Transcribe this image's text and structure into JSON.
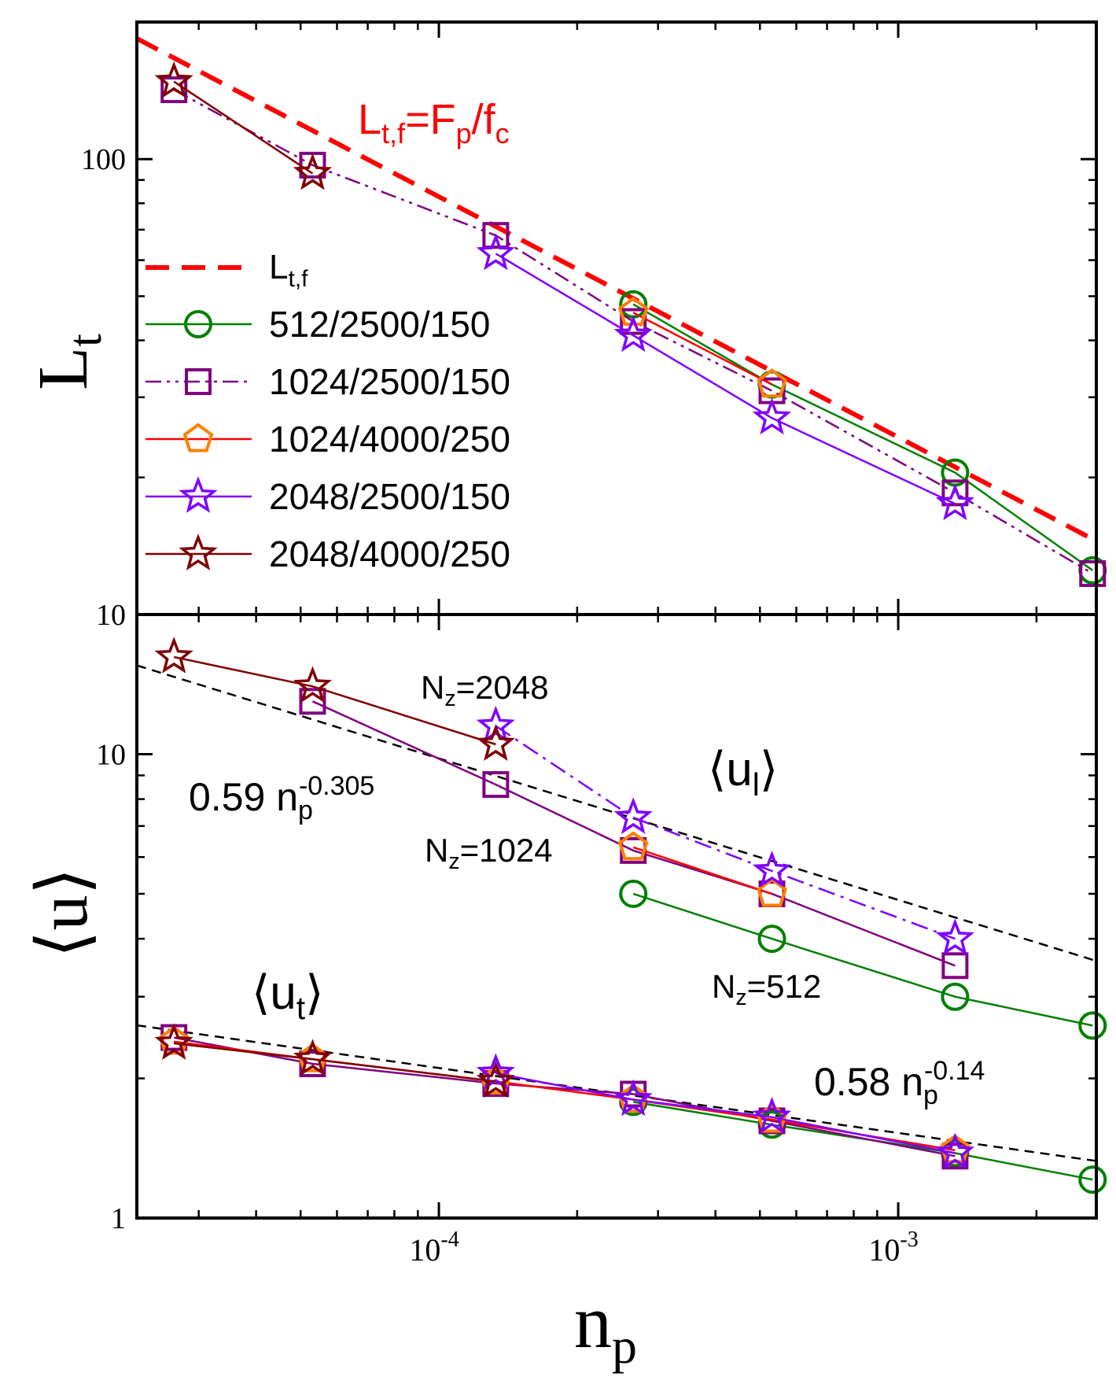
{
  "chart_data": [
    {
      "panel": "top",
      "type": "line",
      "xscale": "log",
      "yscale": "log",
      "xlim": [
        2.2e-05,
        0.0027
      ],
      "ylim": [
        10,
        200
      ],
      "ylabel": "L",
      "ylabel_sub": "t",
      "yticks": [
        {
          "value": 10,
          "label": "10"
        },
        {
          "value": 100,
          "label": "100"
        }
      ],
      "formula": {
        "L": "L",
        "L_sub": "t,f",
        "eq": "=F",
        "F_sub": "p",
        "slash": "/f",
        "f_sub": "c",
        "color": "#ff0000"
      },
      "reference_line": {
        "name": "L",
        "name_sub": "t,f",
        "color": "#ff0000",
        "dash": "dashed",
        "x": [
          2.2e-05,
          0.0027
        ],
        "y": [
          184,
          14.5
        ]
      },
      "legend_position": "left",
      "series": [
        {
          "name": "512/2500/150",
          "marker": "circle",
          "color": "#008000",
          "line_color": "#008000",
          "dash": "solid",
          "x": [
            0.000265,
            0.000531,
            0.00133,
            0.00265
          ],
          "y": [
            48,
            32,
            20.5,
            12.5
          ]
        },
        {
          "name": "1024/2500/150",
          "marker": "square",
          "color": "#800080",
          "line_color": "#800080",
          "dash": "dashdotdot",
          "x": [
            2.65e-05,
            5.31e-05,
            0.000133,
            0.000265,
            0.000531,
            0.00133,
            0.00265
          ],
          "y": [
            142,
            97,
            68,
            44,
            31,
            18.5,
            12.3
          ]
        },
        {
          "name": "1024/4000/250",
          "marker": "pentagon",
          "color": "#ff8000",
          "line_color": "#ff0000",
          "dash": "solid",
          "x": [
            0.000265,
            0.000531
          ],
          "y": [
            46,
            32
          ]
        },
        {
          "name": "2048/2500/150",
          "marker": "star",
          "color": "#8000ff",
          "line_color": "#8000ff",
          "dash": "solid",
          "x": [
            0.000133,
            0.000265,
            0.000531,
            0.00133
          ],
          "y": [
            62,
            41,
            27,
            17.5
          ]
        },
        {
          "name": "2048/4000/250",
          "marker": "star",
          "color": "#800000",
          "line_color": "#800000",
          "dash": "solid",
          "x": [
            2.65e-05,
            5.31e-05
          ],
          "y": [
            148,
            93
          ]
        }
      ]
    },
    {
      "panel": "bottom",
      "type": "line",
      "xscale": "log",
      "yscale": "log",
      "xlim": [
        2.2e-05,
        0.0027
      ],
      "ylim": [
        1,
        20
      ],
      "xlabel": "n",
      "xlabel_sub": "p",
      "ylabel": "⟨u⟩",
      "xticks": [
        {
          "value": 0.0001,
          "base": "10",
          "exp": "-4"
        },
        {
          "value": 0.001,
          "base": "10",
          "exp": "-3"
        }
      ],
      "yticks": [
        {
          "value": 1,
          "label": "1"
        },
        {
          "value": 10,
          "label": "10"
        }
      ],
      "labels": {
        "nz2048": "N",
        "nz2048_sub": "z",
        "nz2048_rest": "=2048",
        "nz1024": "N",
        "nz1024_sub": "z",
        "nz1024_rest": "=1024",
        "nz512": "N",
        "nz512_sub": "z",
        "nz512_rest": "=512",
        "ul_open": "⟨u",
        "ul_sub": "l",
        "ul_close": "⟩",
        "ut_open": "⟨u",
        "ut_sub": "t",
        "ut_close": "⟩",
        "fit1_coef": "0.59 n",
        "fit1_sub": "p",
        "fit1_exp": "-0.305",
        "fit2_coef": "0.58 n",
        "fit2_sub": "p",
        "fit2_exp": "-0.14"
      },
      "fits": [
        {
          "coef": 0.59,
          "exponent": -0.305,
          "color": "#000000",
          "dash": "dashed"
        },
        {
          "coef": 0.58,
          "exponent": -0.14,
          "color": "#000000",
          "dash": "dashed"
        }
      ],
      "series_ul": [
        {
          "name": "512/2500/150",
          "marker": "circle",
          "color": "#008000",
          "line_color": "#008000",
          "dash": "solid",
          "x": [
            0.000265,
            0.000531,
            0.00133,
            0.00265
          ],
          "y": [
            5.0,
            4.0,
            3.0,
            2.6
          ]
        },
        {
          "name": "1024/2500/150",
          "marker": "square",
          "color": "#800080",
          "line_color": "#800080",
          "dash": "solid",
          "x": [
            5.31e-05,
            0.000133,
            0.000265,
            0.000531,
            0.00133
          ],
          "y": [
            13.0,
            8.6,
            6.2,
            5.0,
            3.5
          ]
        },
        {
          "name": "1024/4000/250",
          "marker": "pentagon",
          "color": "#ff8000",
          "line_color": "#ff0000",
          "dash": "solid",
          "x": [
            0.000265,
            0.000531
          ],
          "y": [
            6.3,
            5.0
          ]
        },
        {
          "name": "2048/2500/150",
          "marker": "star",
          "color": "#8000ff",
          "line_color": "#8000ff",
          "dash": "dashdot",
          "x": [
            0.000133,
            0.000265,
            0.000531,
            0.00133
          ],
          "y": [
            11.5,
            7.3,
            5.6,
            4.0
          ]
        },
        {
          "name": "2048/4000/250",
          "marker": "star",
          "color": "#800000",
          "line_color": "#800000",
          "dash": "solid",
          "x": [
            2.65e-05,
            5.31e-05,
            0.000133
          ],
          "y": [
            16.2,
            14.0,
            10.5
          ]
        }
      ],
      "series_ut": [
        {
          "name": "512/2500/150",
          "marker": "circle",
          "color": "#008000",
          "line_color": "#008000",
          "dash": "solid",
          "x": [
            0.000265,
            0.000531,
            0.00133,
            0.00265
          ],
          "y": [
            1.78,
            1.59,
            1.38,
            1.21
          ]
        },
        {
          "name": "1024/2500/150",
          "marker": "square",
          "color": "#800080",
          "line_color": "#800080",
          "dash": "solid",
          "x": [
            2.65e-05,
            5.31e-05,
            0.000133,
            0.000265,
            0.000531,
            0.00133
          ],
          "y": [
            2.45,
            2.15,
            1.95,
            1.85,
            1.62,
            1.36
          ]
        },
        {
          "name": "1024/4000/250",
          "marker": "pentagon",
          "color": "#ff8000",
          "line_color": "#ff0000",
          "dash": "solid",
          "x": [
            2.65e-05,
            5.31e-05,
            0.000133,
            0.000265,
            0.000531,
            0.00133
          ],
          "y": [
            2.4,
            2.2,
            1.97,
            1.8,
            1.63,
            1.4
          ]
        },
        {
          "name": "2048/2500/150",
          "marker": "star",
          "color": "#8000ff",
          "line_color": "#8000ff",
          "dash": "solid",
          "x": [
            0.000133,
            0.000265,
            0.000531,
            0.00133
          ],
          "y": [
            2.05,
            1.8,
            1.65,
            1.38
          ]
        },
        {
          "name": "2048/4000/250",
          "marker": "star",
          "color": "#800000",
          "line_color": "#800000",
          "dash": "solid",
          "x": [
            2.65e-05,
            5.31e-05,
            0.000133
          ],
          "y": [
            2.38,
            2.2,
            1.97
          ]
        }
      ]
    }
  ]
}
